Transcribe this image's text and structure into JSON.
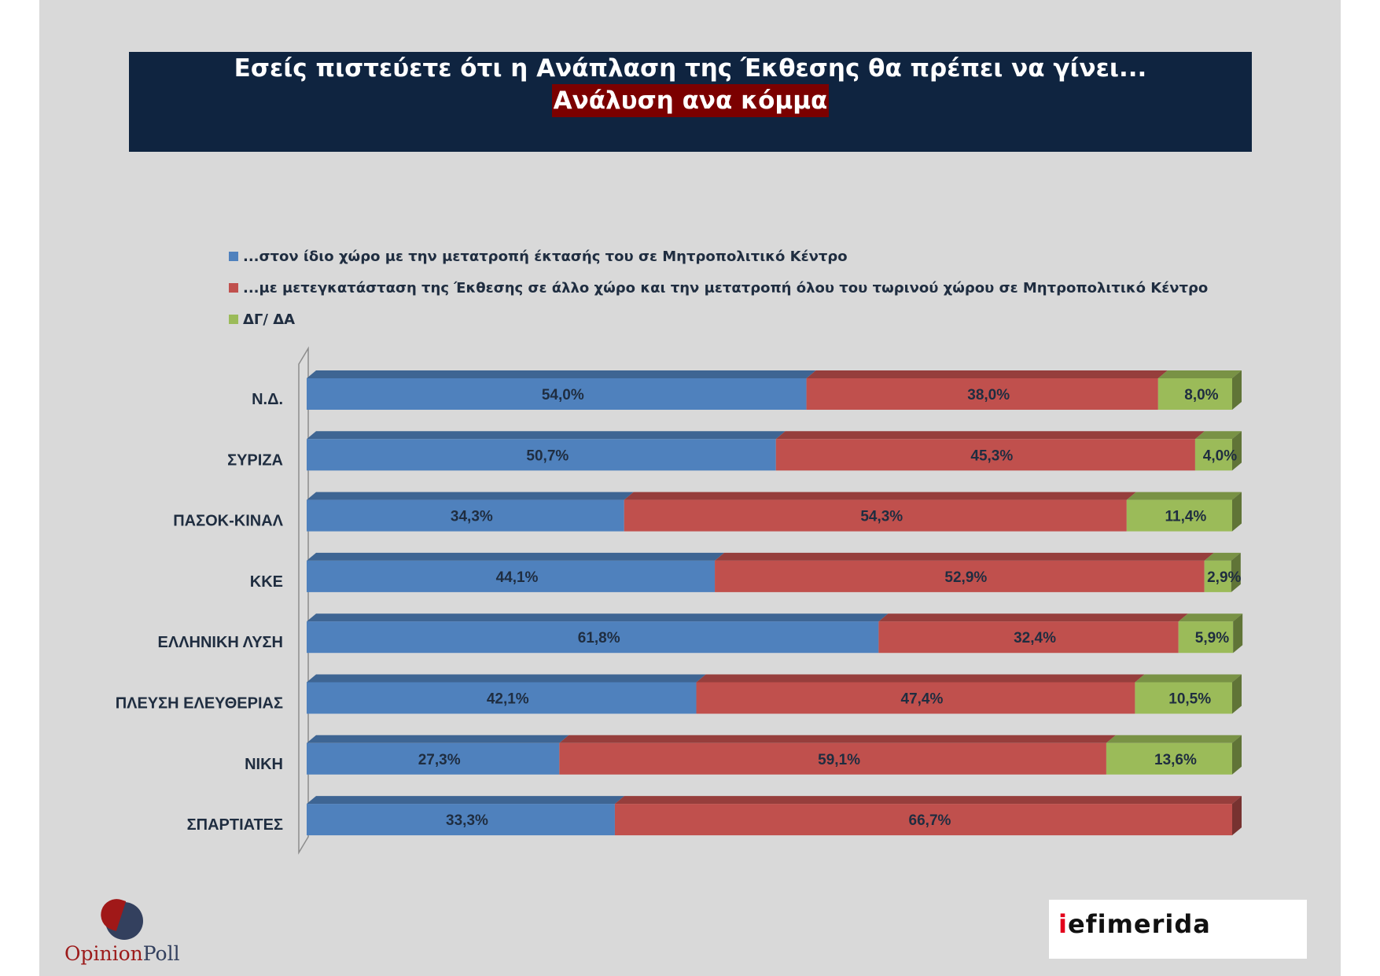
{
  "title": {
    "line1": "Εσείς πιστεύετε ότι η Ανάπλαση της Έκθεσης θα πρέπει να γίνει...",
    "line2": "Ανάλυση ανα κόμμα"
  },
  "legend": [
    {
      "label": "...στον ίδιο χώρο με την μετατροπή έκτασής του σε Μητροπολιτικό Κέντρο",
      "color": "#4f81bd"
    },
    {
      "label": "...με μετεγκατάσταση της Έκθεσης σε άλλο χώρο και την μετατροπή όλου του τωρινού χώρου σε Μητροπολιτικό Κέντρο",
      "color": "#c0504d"
    },
    {
      "label": "ΔΓ/ ΔΑ",
      "color": "#9bbb59"
    }
  ],
  "chart_data": {
    "type": "bar",
    "orientation": "horizontal",
    "stacked": true,
    "percent_stacked": true,
    "three_d": true,
    "categories": [
      "Ν.Δ.",
      "ΣΥΡΙΖΑ",
      "ΠΑΣΟΚ-ΚΙΝΑΛ",
      "ΚΚΕ",
      "ΕΛΛΗΝΙΚΗ ΛΥΣΗ",
      "ΠΛΕΥΣΗ ΕΛΕΥΘΕΡΙΑΣ",
      "ΝΙΚΗ",
      "ΣΠΑΡΤΙΑΤΕΣ"
    ],
    "series": [
      {
        "name": "...στον ίδιο χώρο με την μετατροπή έκτασής του σε Μητροπολιτικό Κέντρο",
        "color": "#4f81bd",
        "values": [
          54.0,
          50.7,
          34.3,
          44.1,
          61.8,
          42.1,
          27.3,
          33.3
        ],
        "labels": [
          "54,0%",
          "50,7%",
          "34,3%",
          "44,1%",
          "61,8%",
          "42,1%",
          "27,3%",
          "33,3%"
        ]
      },
      {
        "name": "...με μετεγκατάσταση της Έκθεσης σε άλλο χώρο και την μετατροπή όλου του τωρινού χώρου σε Μητροπολιτικό Κέντρο",
        "color": "#c0504d",
        "values": [
          38.0,
          45.3,
          54.3,
          52.9,
          32.4,
          47.4,
          59.1,
          66.7
        ],
        "labels": [
          "38,0%",
          "45,3%",
          "54,3%",
          "52,9%",
          "32,4%",
          "47,4%",
          "59,1%",
          "66,7%"
        ]
      },
      {
        "name": "ΔΓ/ ΔΑ",
        "color": "#9bbb59",
        "values": [
          8.0,
          4.0,
          11.4,
          2.9,
          5.9,
          10.5,
          13.6,
          0
        ],
        "labels": [
          "8,0%",
          "4,0%",
          "11,4%",
          "2,9%",
          "5,9%",
          "10,5%",
          "13,6%",
          ""
        ]
      }
    ],
    "xlim": [
      0,
      100
    ],
    "legend_position": "top",
    "grid": false
  },
  "logos": {
    "opinionpoll": {
      "part1": "Opinion",
      "part2": "Poll"
    },
    "iefimerida": {
      "part1": "i",
      "part2": "efimerida"
    }
  }
}
